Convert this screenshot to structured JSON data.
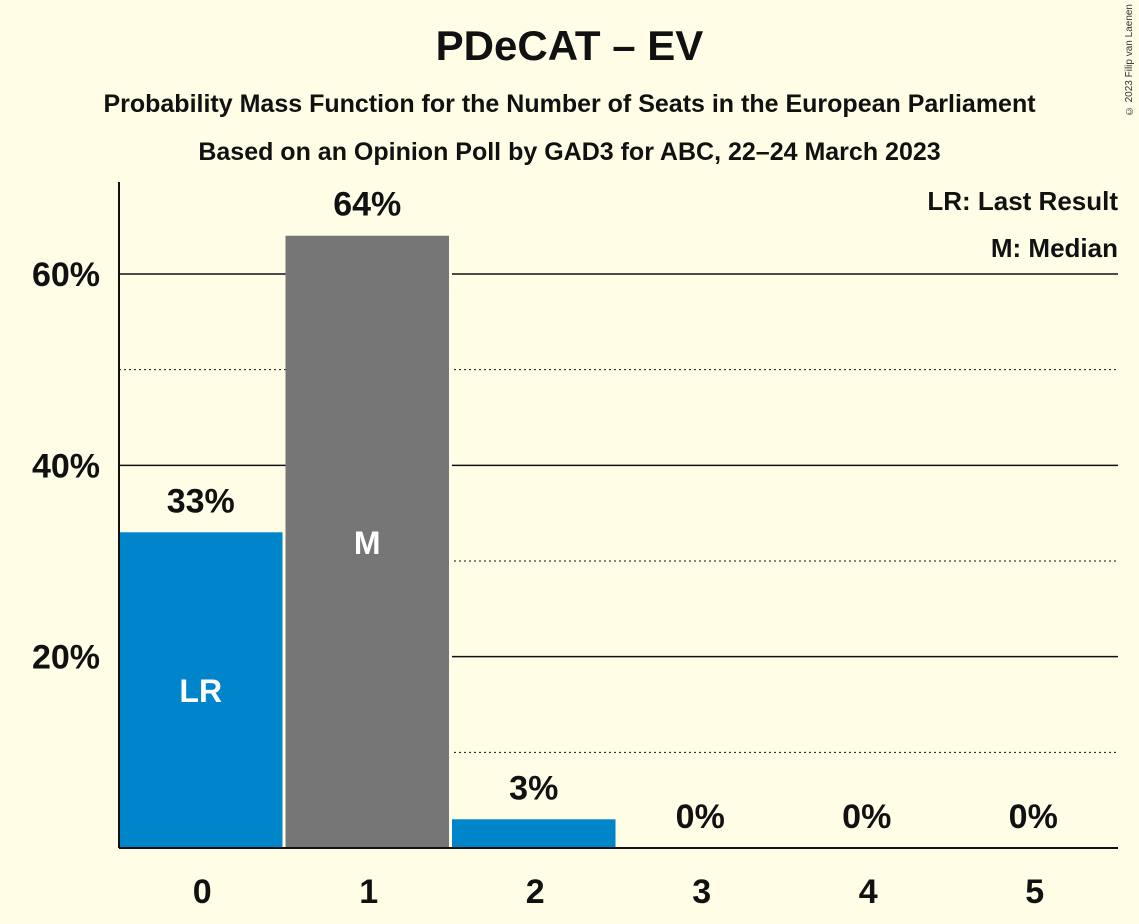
{
  "header": {
    "title": "PDeCAT – EV",
    "subtitle": "Probability Mass Function for the Number of Seats in the European Parliament",
    "source": "Based on an Opinion Poll by GAD3 for ABC, 22–24 March 2023",
    "copyright": "© 2023 Filip van Laenen"
  },
  "legend": {
    "lr": "LR: Last Result",
    "median": "M: Median"
  },
  "chart_data": {
    "type": "bar",
    "categories": [
      "0",
      "1",
      "2",
      "3",
      "4",
      "5"
    ],
    "values": [
      33,
      64,
      3,
      0,
      0,
      0
    ],
    "value_labels": [
      "33%",
      "64%",
      "3%",
      "0%",
      "0%",
      "0%"
    ],
    "bar_colors": [
      "#0084CA",
      "#767676",
      "#0084CA",
      "#0084CA",
      "#0084CA",
      "#0084CA"
    ],
    "inbar_labels": [
      "LR",
      "M",
      "",
      "",
      "",
      ""
    ],
    "y_ticks": [
      {
        "value": 20,
        "label": "20%"
      },
      {
        "value": 40,
        "label": "40%"
      },
      {
        "value": 60,
        "label": "60%"
      }
    ],
    "minor_gridlines": [
      10,
      30,
      50
    ],
    "ylim": [
      0,
      70
    ],
    "grid": true,
    "legend_position": "top-right",
    "xlabel": "",
    "ylabel": ""
  }
}
